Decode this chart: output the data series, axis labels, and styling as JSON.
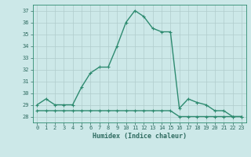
{
  "x": [
    0,
    1,
    2,
    3,
    4,
    5,
    6,
    7,
    8,
    9,
    10,
    11,
    12,
    13,
    14,
    15,
    16,
    17,
    18,
    19,
    20,
    21,
    22,
    23
  ],
  "y_main": [
    29.0,
    29.5,
    29.0,
    29.0,
    29.0,
    30.5,
    31.7,
    32.2,
    32.2,
    34.0,
    36.0,
    37.0,
    36.5,
    35.5,
    35.2,
    35.2,
    28.7,
    29.5,
    29.2,
    29.0,
    28.5,
    28.5,
    28.0,
    28.0
  ],
  "y_flat": [
    28.5,
    28.5,
    28.5,
    28.5,
    28.5,
    28.5,
    28.5,
    28.5,
    28.5,
    28.5,
    28.5,
    28.5,
    28.5,
    28.5,
    28.5,
    28.5,
    28.0,
    28.0,
    28.0,
    28.0,
    28.0,
    28.0,
    28.0,
    28.0
  ],
  "line_color": "#2e8b70",
  "bg_color": "#cce8e8",
  "grid_color": "#b0cccc",
  "text_color": "#2e6b60",
  "xlabel": "Humidex (Indice chaleur)",
  "ylim": [
    27.5,
    37.5
  ],
  "xlim": [
    -0.5,
    23.5
  ],
  "yticks": [
    28,
    29,
    30,
    31,
    32,
    33,
    34,
    35,
    36,
    37
  ],
  "xticks": [
    0,
    1,
    2,
    3,
    4,
    5,
    6,
    7,
    8,
    9,
    10,
    11,
    12,
    13,
    14,
    15,
    16,
    17,
    18,
    19,
    20,
    21,
    22,
    23
  ],
  "xtick_labels": [
    "0",
    "1",
    "2",
    "3",
    "4",
    "5",
    "6",
    "7",
    "8",
    "9",
    "10",
    "11",
    "12",
    "13",
    "14",
    "15",
    "16",
    "17",
    "18",
    "19",
    "20",
    "21",
    "22",
    "23"
  ]
}
